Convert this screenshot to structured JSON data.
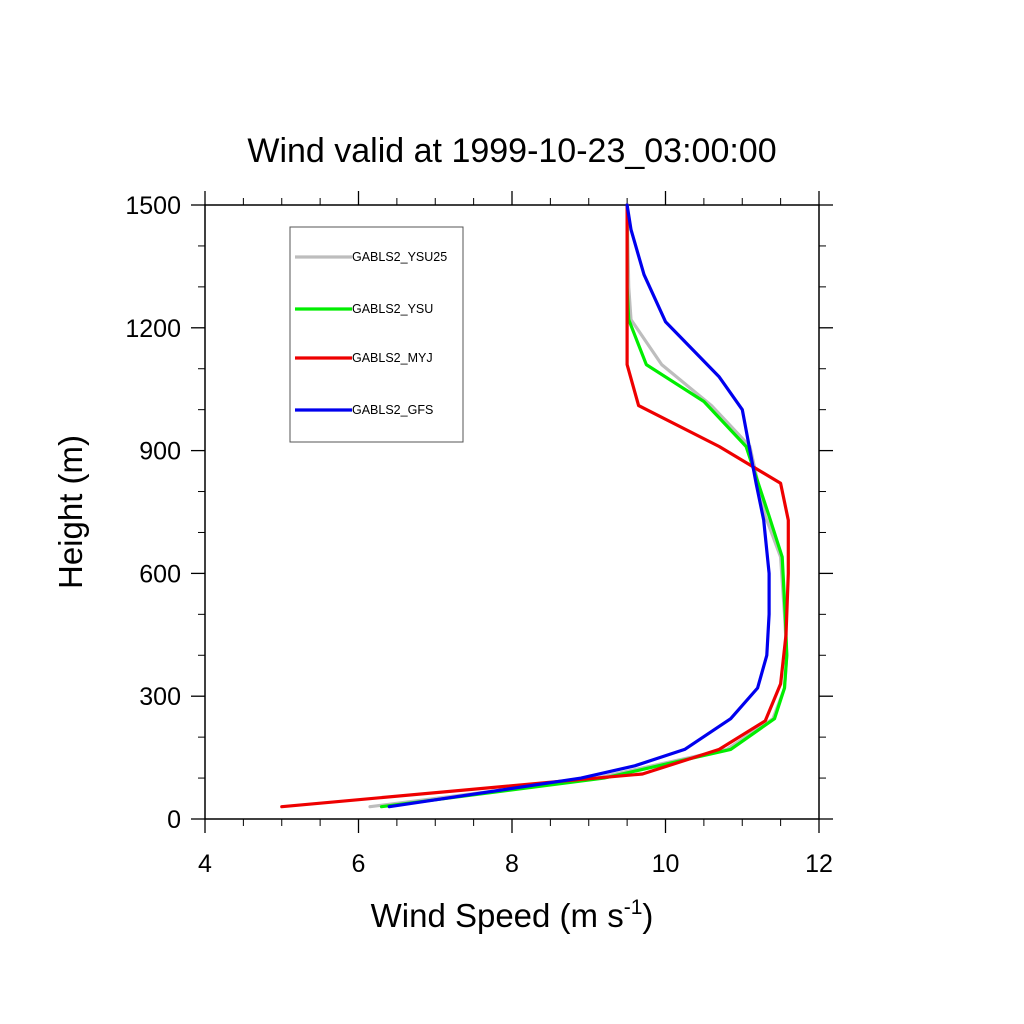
{
  "chart_data": {
    "type": "line",
    "title": "Wind valid at 1999-10-23_03:00:00",
    "xlabel": "Wind Speed (m s",
    "xlabel_sup": "-1",
    "xlabel_close": ")",
    "ylabel": "Height (m)",
    "xlim": [
      4,
      12
    ],
    "ylim": [
      0,
      1500
    ],
    "xticks": [
      4,
      6,
      8,
      10,
      12
    ],
    "xtick_labels": [
      "4",
      "6",
      "8",
      "10",
      "12"
    ],
    "yticks": [
      0,
      300,
      600,
      900,
      1200,
      1500
    ],
    "ytick_labels": [
      "0",
      "300",
      "600",
      "900",
      "1200",
      "1500"
    ],
    "grid": false,
    "legend_position": "top-left",
    "series": [
      {
        "name": "GABLS2_YSU25",
        "color": "#bdbdbd",
        "x": [
          6.15,
          9.1,
          10.8,
          11.4,
          11.55,
          11.58,
          11.55,
          11.5,
          11.3,
          11.1,
          10.6,
          9.95,
          9.55,
          9.52,
          9.5
        ],
        "y": [
          30,
          100,
          170,
          245,
          320,
          400,
          500,
          640,
          740,
          910,
          1010,
          1110,
          1220,
          1300,
          1500
        ]
      },
      {
        "name": "GABLS2_YSU",
        "color": "#00ee00",
        "x": [
          6.3,
          9.2,
          10.85,
          11.42,
          11.55,
          11.58,
          11.56,
          11.52,
          11.35,
          11.05,
          10.5,
          9.75,
          9.52,
          9.5,
          9.5
        ],
        "y": [
          30,
          100,
          170,
          245,
          320,
          400,
          500,
          640,
          740,
          910,
          1020,
          1110,
          1220,
          1300,
          1500
        ]
      },
      {
        "name": "GABLS2_MYJ",
        "color": "#ee0000",
        "x": [
          5.0,
          8.5,
          9.7,
          10.7,
          11.3,
          11.5,
          11.57,
          11.6,
          11.6,
          11.5,
          10.7,
          9.65,
          9.5,
          9.5,
          9.5
        ],
        "y": [
          30,
          90,
          110,
          170,
          240,
          330,
          450,
          600,
          730,
          820,
          910,
          1010,
          1110,
          1220,
          1500
        ]
      },
      {
        "name": "GABLS2_GFS",
        "color": "#0000ee",
        "x": [
          6.4,
          8.9,
          9.6,
          10.25,
          10.85,
          11.2,
          11.32,
          11.35,
          11.35,
          11.28,
          11.18,
          11.0,
          10.7,
          10.0,
          9.72,
          9.55,
          9.5
        ],
        "y": [
          30,
          100,
          130,
          170,
          245,
          320,
          400,
          500,
          600,
          730,
          820,
          1000,
          1080,
          1215,
          1330,
          1440,
          1500
        ]
      }
    ]
  }
}
